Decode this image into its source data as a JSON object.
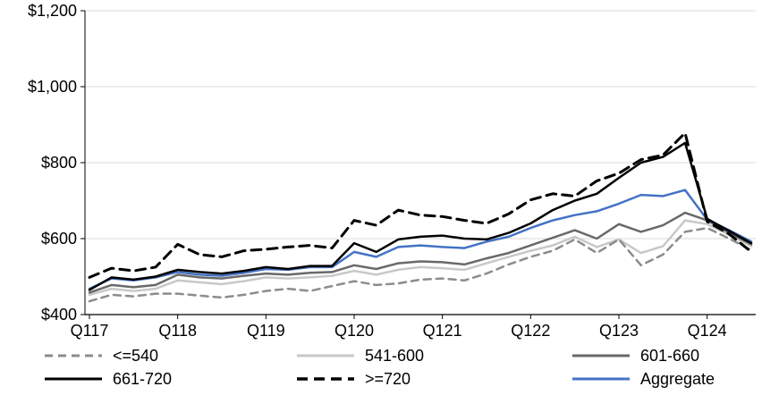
{
  "chart_data": {
    "type": "line",
    "title": "",
    "xlabel": "",
    "ylabel": "",
    "ylim": [
      400,
      1200
    ],
    "grid": "horizontal",
    "legend_position": "bottom",
    "y_ticks": [
      400,
      600,
      800,
      1000,
      1200
    ],
    "y_tick_labels": [
      "$400",
      "$600",
      "$800",
      "$1,000",
      "$1,200"
    ],
    "x_tick_indices": [
      0,
      4,
      8,
      12,
      16,
      20,
      24,
      28
    ],
    "x_tick_labels": [
      "Q117",
      "Q118",
      "Q119",
      "Q120",
      "Q121",
      "Q122",
      "Q123",
      "Q124"
    ],
    "series": [
      {
        "name": "<=540",
        "color": "#8c8c8c",
        "dash": "dashed",
        "width": 2.5,
        "values": [
          435,
          452,
          448,
          455,
          455,
          450,
          445,
          452,
          462,
          468,
          462,
          475,
          488,
          478,
          482,
          492,
          495,
          490,
          508,
          532,
          552,
          568,
          598,
          562,
          598,
          530,
          558,
          618,
          628,
          600,
          570
        ]
      },
      {
        "name": "541-600",
        "color": "#c8c8c8",
        "dash": "solid",
        "width": 2.5,
        "values": [
          452,
          468,
          462,
          468,
          490,
          485,
          480,
          488,
          498,
          495,
          498,
          502,
          515,
          505,
          518,
          525,
          522,
          518,
          535,
          552,
          568,
          582,
          605,
          578,
          598,
          562,
          580,
          648,
          638,
          610,
          580
        ]
      },
      {
        "name": "601-660",
        "color": "#696969",
        "dash": "solid",
        "width": 2.5,
        "values": [
          458,
          478,
          472,
          478,
          505,
          498,
          495,
          502,
          508,
          505,
          510,
          512,
          530,
          520,
          535,
          540,
          538,
          532,
          548,
          562,
          582,
          602,
          622,
          600,
          638,
          618,
          635,
          668,
          648,
          615,
          585
        ]
      },
      {
        "name": "661-720",
        "color": "#000000",
        "dash": "solid",
        "width": 2.5,
        "values": [
          465,
          498,
          492,
          500,
          518,
          512,
          508,
          515,
          525,
          520,
          528,
          528,
          588,
          565,
          598,
          605,
          608,
          600,
          598,
          615,
          640,
          675,
          700,
          718,
          760,
          800,
          815,
          852,
          652,
          620,
          588
        ]
      },
      {
        "name": ">=720",
        "color": "#000000",
        "dash": "dashed",
        "width": 3,
        "values": [
          498,
          522,
          515,
          525,
          585,
          558,
          552,
          568,
          572,
          578,
          582,
          575,
          648,
          635,
          675,
          662,
          658,
          648,
          640,
          665,
          702,
          718,
          712,
          752,
          772,
          808,
          820,
          878,
          645,
          612,
          565
        ]
      },
      {
        "name": "Aggregate",
        "color": "#4472c4",
        "dash": "solid",
        "width": 2.5,
        "values": [
          468,
          495,
          490,
          498,
          512,
          505,
          502,
          510,
          520,
          518,
          525,
          525,
          565,
          552,
          578,
          582,
          578,
          575,
          592,
          605,
          628,
          648,
          662,
          672,
          692,
          715,
          712,
          728,
          650,
          622,
          592
        ]
      }
    ]
  }
}
